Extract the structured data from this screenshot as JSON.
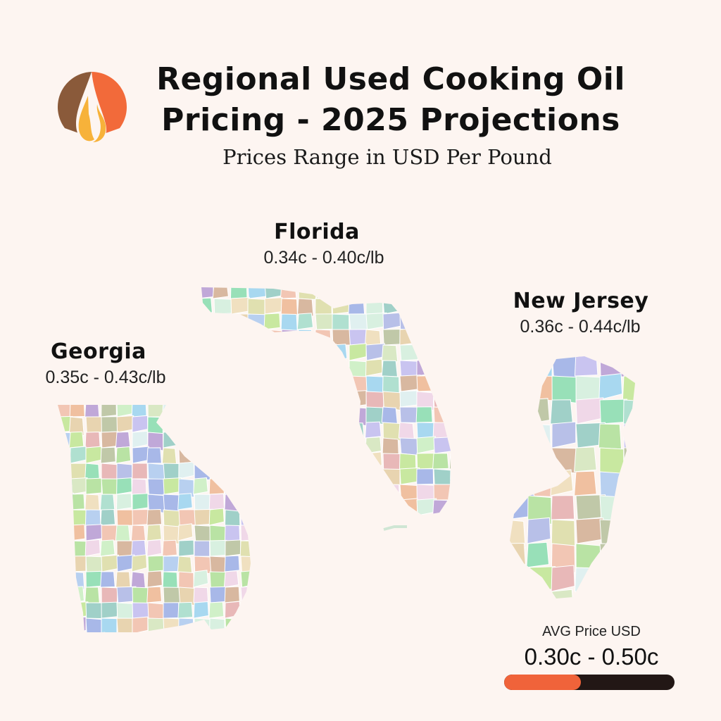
{
  "header": {
    "title_line1": "Regional Used Cooking Oil",
    "title_line2": "Pricing - 2025 Projections",
    "subtitle": "Prices Range in USD Per Pound"
  },
  "regions": [
    {
      "name": "Florida",
      "price_range": "0.34c - 0.40c/lb"
    },
    {
      "name": "Georgia",
      "price_range": "0.35c - 0.43c/lb"
    },
    {
      "name": "New Jersey",
      "price_range": "0.36c - 0.44c/lb"
    }
  ],
  "legend": {
    "title": "AVG Price USD",
    "range": "0.30c - 0.50c",
    "level": 0.45,
    "bar_color": "#221715",
    "fill_color": "#f0633a"
  },
  "colors": {
    "background": "#fdf5f1",
    "logo_brown": "#8a5a3a",
    "logo_orange": "#f26a3a",
    "logo_yellow": "#f7b23a"
  },
  "icons": {
    "logo": "flame-drop-logo-icon"
  }
}
